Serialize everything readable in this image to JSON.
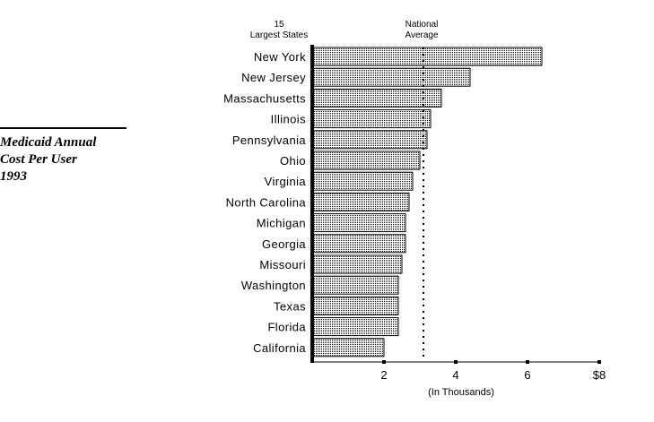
{
  "side_title": {
    "line1": "Medicaid Annual",
    "line2": "Cost Per User",
    "line3": "1993"
  },
  "chart_data": {
    "type": "bar",
    "orientation": "horizontal",
    "category_header": "15 Largest States",
    "reference_line": {
      "label": "National Average",
      "value": 3.1
    },
    "categories": [
      "New York",
      "New Jersey",
      "Massachusetts",
      "Illinois",
      "Pennsylvania",
      "Ohio",
      "Virginia",
      "North Carolina",
      "Michigan",
      "Georgia",
      "Missouri",
      "Washington",
      "Texas",
      "Florida",
      "California"
    ],
    "values": [
      6.4,
      4.4,
      3.6,
      3.3,
      3.2,
      3.0,
      2.8,
      2.7,
      2.6,
      2.6,
      2.5,
      2.4,
      2.4,
      2.4,
      2.0
    ],
    "xlim": [
      0,
      8
    ],
    "x_ticks": [
      2,
      4,
      6,
      8
    ],
    "x_tick_labels": [
      "2",
      "4",
      "6",
      "$8"
    ],
    "xlabel": "(In Thousands)",
    "grid": false,
    "legend": "none",
    "colors": {
      "bar_fill": "#dcdcdc",
      "stroke": "#000000"
    }
  }
}
